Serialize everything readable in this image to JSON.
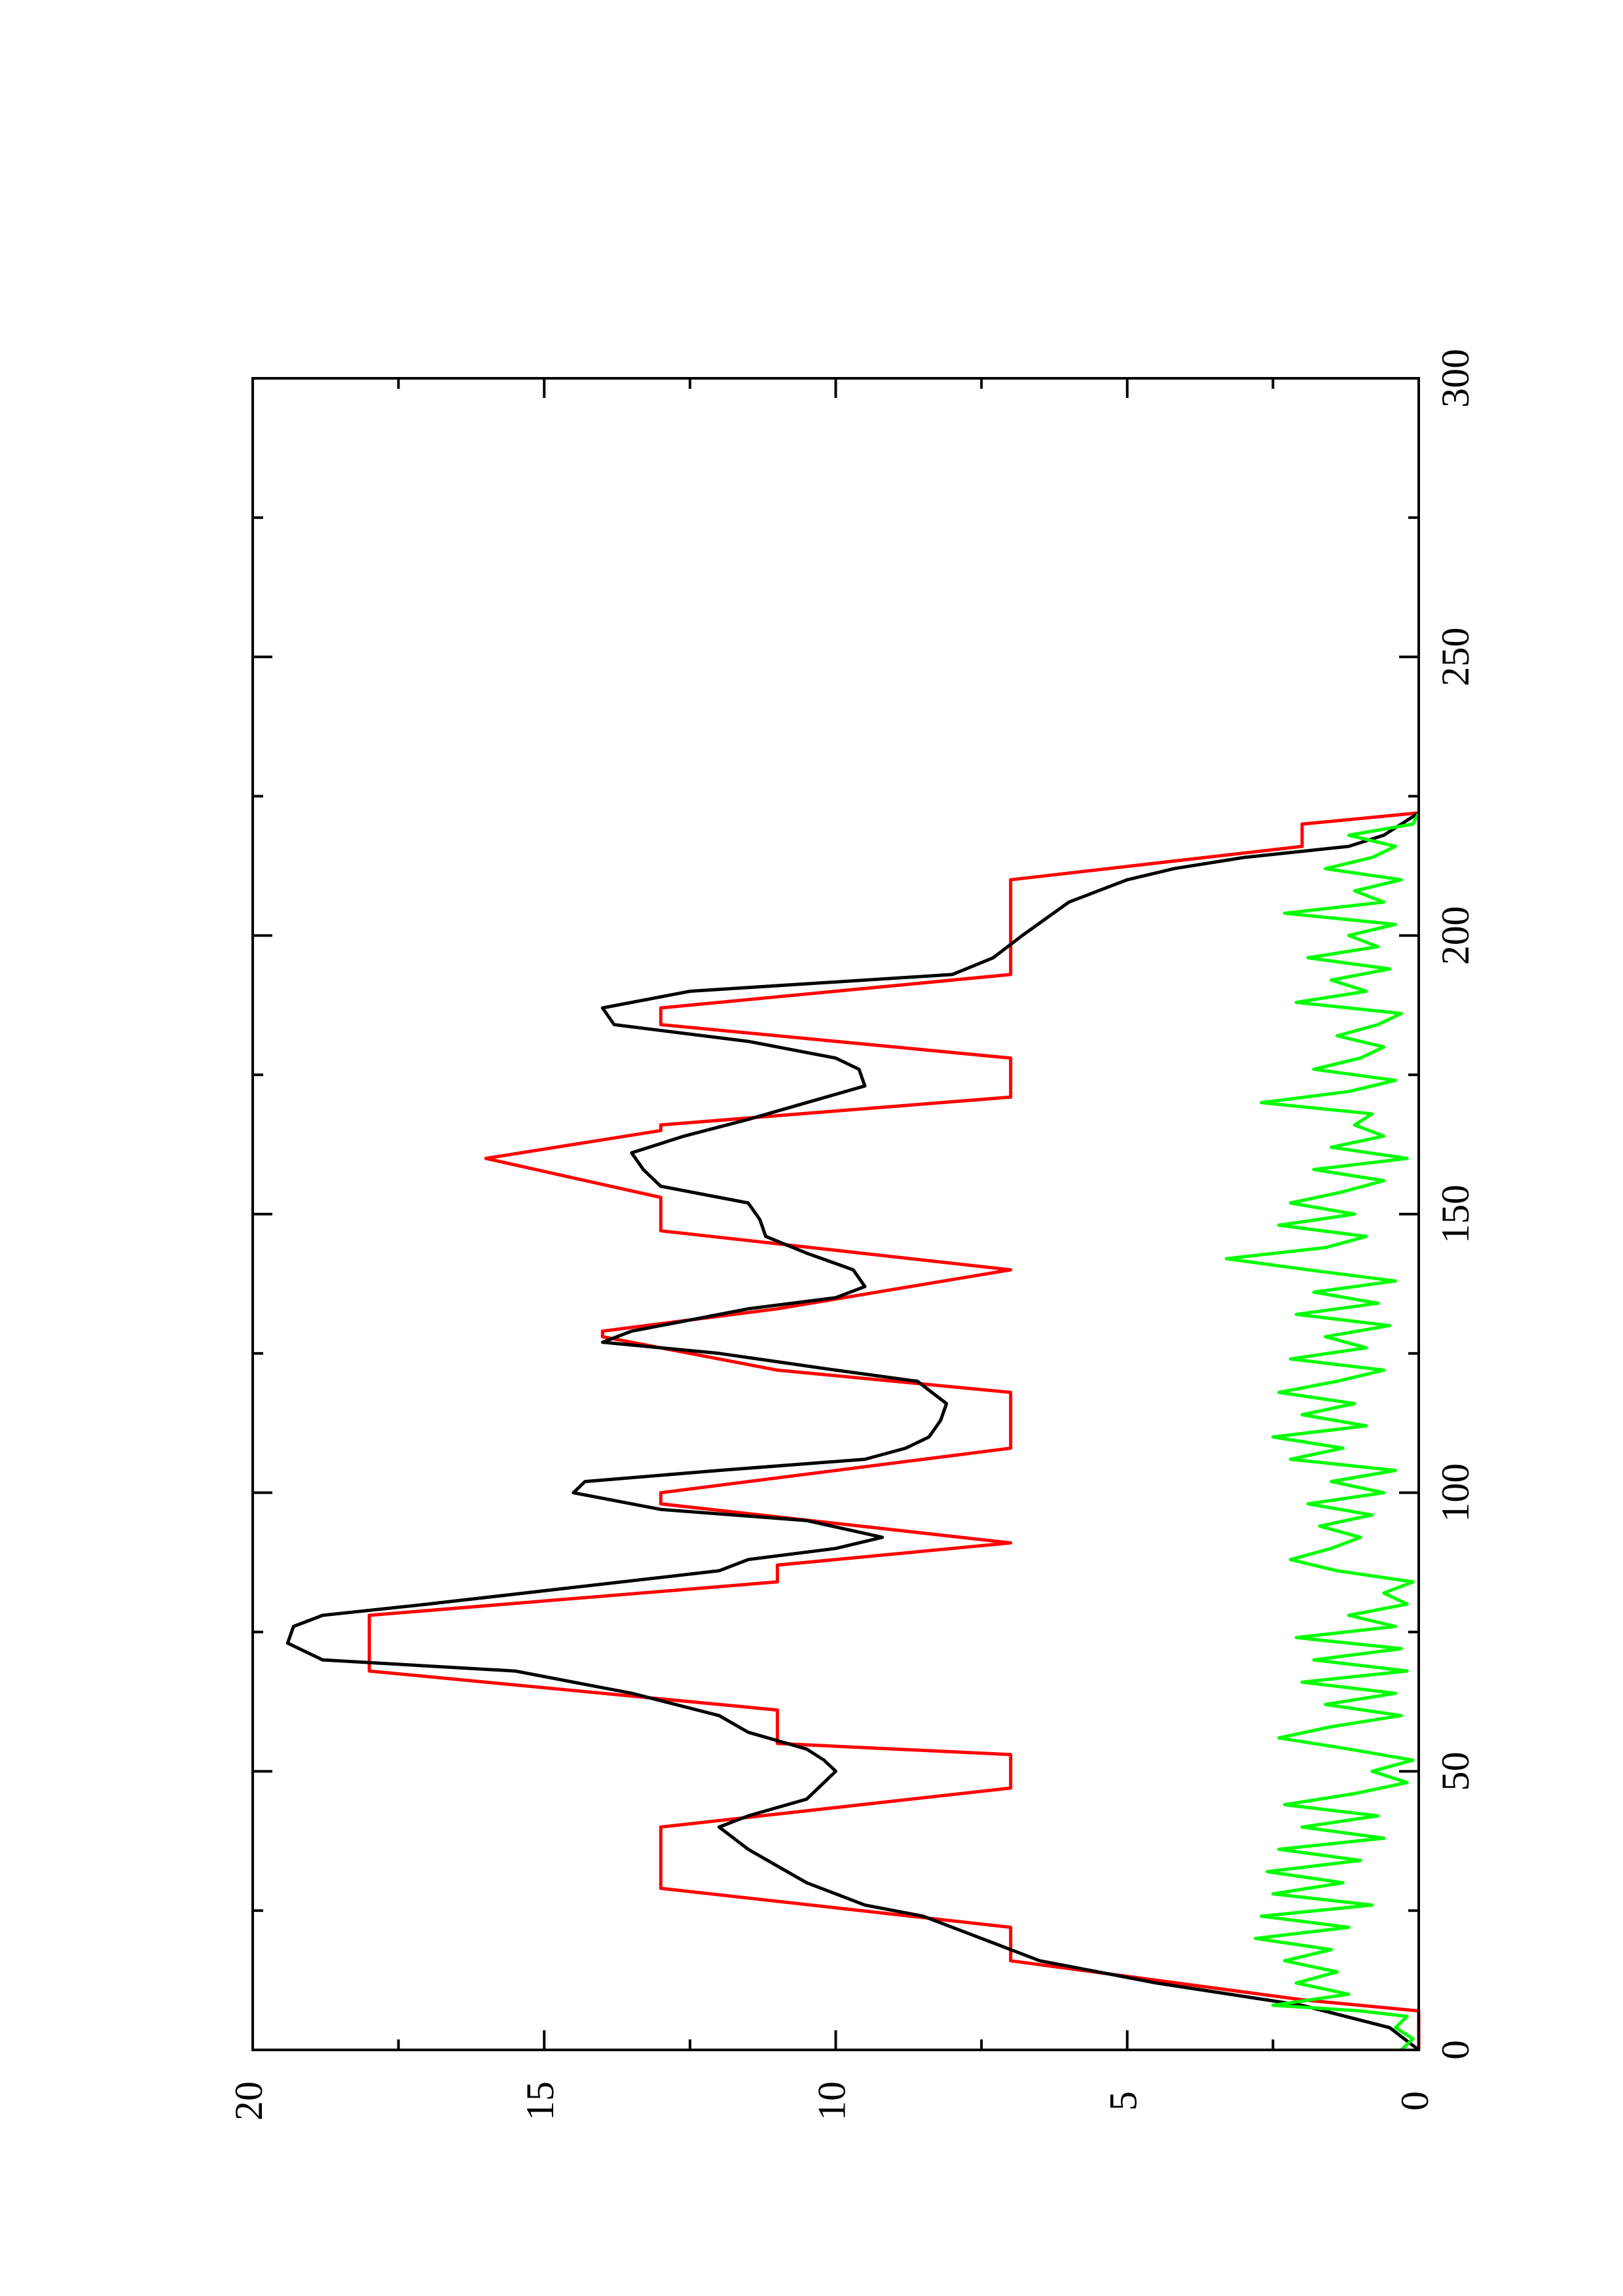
{
  "chart_data": {
    "type": "line",
    "title": "",
    "xlabel": "",
    "ylabel": "",
    "orientation": "rotated-90-counterclockwise",
    "xlim": [
      0,
      300
    ],
    "ylim": [
      0,
      20
    ],
    "x_ticks": [
      0,
      50,
      100,
      150,
      200,
      250,
      300
    ],
    "y_ticks": [
      0,
      5,
      10,
      15,
      20
    ],
    "grid": false,
    "legend": "none",
    "series": [
      {
        "color": "#ff0000",
        "x": [
          0,
          7,
          9,
          16,
          22,
          29,
          40,
          47,
          53,
          55,
          61,
          68,
          78,
          84,
          87,
          91,
          98,
          100,
          108,
          118,
          122,
          128,
          129,
          133,
          140,
          147,
          153,
          160,
          160,
          165,
          166,
          171,
          178,
          184,
          187,
          193,
          210,
          216,
          220,
          222
        ],
        "y": [
          0,
          0,
          2,
          7,
          7,
          13,
          13,
          7,
          7,
          11,
          11,
          18,
          18,
          11,
          11,
          7,
          13,
          13,
          7,
          7,
          11,
          14,
          14,
          11,
          7,
          13,
          13,
          16,
          16,
          13,
          13,
          7,
          7,
          13,
          13,
          7,
          7,
          2,
          2,
          0
        ]
      },
      {
        "color": "#000000",
        "x": [
          0,
          4,
          8,
          12,
          16,
          20,
          24,
          26,
          28,
          30,
          33,
          36,
          40,
          42,
          45,
          48,
          50,
          52,
          54,
          57,
          60,
          64,
          68,
          70,
          73,
          76,
          78,
          80,
          83,
          86,
          88,
          90,
          92,
          95,
          97,
          100,
          102,
          104,
          106,
          108,
          110,
          113,
          116,
          120,
          122,
          125,
          127,
          129,
          131,
          133,
          135,
          137,
          140,
          143,
          146,
          149,
          152,
          155,
          158,
          161,
          164,
          167,
          170,
          173,
          176,
          178,
          181,
          184,
          187,
          190,
          193,
          196,
          200,
          203,
          206,
          208,
          210,
          212,
          214,
          216,
          218,
          220,
          222
        ],
        "y": [
          0,
          0.5,
          2,
          4.5,
          6.5,
          7.5,
          8.5,
          9.5,
          10,
          10.5,
          11,
          11.5,
          12,
          11.5,
          10.5,
          10.2,
          10,
          10.2,
          10.5,
          11.5,
          12,
          13.5,
          15.5,
          18.8,
          19.4,
          19.3,
          18.8,
          17,
          14.5,
          12,
          11.5,
          10,
          9.2,
          10.5,
          13,
          14.5,
          14.3,
          12,
          9.5,
          8.8,
          8.4,
          8.2,
          8.1,
          8.6,
          10,
          12,
          14,
          13.5,
          12.5,
          11.5,
          10,
          9.5,
          9.7,
          10.5,
          11.2,
          11.3,
          11.5,
          13,
          13.3,
          13.5,
          12.6,
          11.5,
          10.5,
          9.5,
          9.6,
          10,
          11.5,
          13.8,
          14,
          12.5,
          8,
          7.3,
          6.8,
          6.4,
          6,
          5.5,
          5,
          4.2,
          3,
          1.2,
          0.6,
          0.3,
          0
        ]
      },
      {
        "color": "#00ff00",
        "x": [
          0,
          2,
          4,
          6,
          7,
          8,
          10,
          12,
          14,
          16,
          18,
          20,
          22,
          24,
          26,
          28,
          30,
          32,
          34,
          36,
          38,
          40,
          42,
          44,
          46,
          48,
          50,
          52,
          54,
          56,
          58,
          60,
          62,
          64,
          66,
          68,
          70,
          72,
          74,
          76,
          78,
          80,
          82,
          84,
          86,
          88,
          90,
          92,
          94,
          96,
          98,
          100,
          102,
          104,
          106,
          108,
          110,
          112,
          114,
          116,
          118,
          120,
          122,
          124,
          126,
          128,
          130,
          132,
          134,
          136,
          138,
          140,
          142,
          144,
          146,
          148,
          150,
          152,
          154,
          156,
          158,
          160,
          162,
          164,
          166,
          168,
          170,
          172,
          174,
          176,
          178,
          180,
          182,
          184,
          186,
          188,
          190,
          192,
          194,
          196,
          198,
          200,
          202,
          204,
          206,
          208,
          210,
          212,
          214,
          216,
          218,
          220,
          222
        ],
        "y": [
          0.3,
          0.1,
          0.4,
          0.2,
          1,
          2.5,
          1.2,
          2.1,
          1.4,
          2.3,
          1.5,
          2.8,
          1.2,
          2.7,
          0.8,
          2.5,
          1.3,
          2.6,
          1,
          2.4,
          0.6,
          2,
          0.7,
          2.3,
          1.1,
          0.2,
          0.8,
          0.1,
          1.2,
          2.4,
          1.5,
          0.3,
          1.6,
          0.4,
          2,
          0.2,
          1.8,
          0.3,
          2.1,
          0.4,
          1.2,
          0.2,
          0.6,
          0.1,
          1.4,
          2.2,
          1.5,
          1,
          1.7,
          0.8,
          1.9,
          0.6,
          1.5,
          0.4,
          2.2,
          1.3,
          2.5,
          0.9,
          2,
          1.1,
          2.4,
          1.4,
          0.6,
          2.2,
          0.9,
          1.6,
          0.5,
          2.1,
          0.7,
          1.8,
          0.4,
          1.9,
          3.3,
          1.6,
          0.9,
          2.4,
          1.1,
          2.2,
          1.3,
          0.6,
          1.8,
          0.2,
          1.5,
          0.6,
          1.1,
          0.8,
          2.7,
          1.2,
          0.4,
          1.8,
          1,
          0.6,
          1.4,
          0.7,
          0.3,
          2.1,
          0.9,
          1.5,
          0.5,
          1.9,
          0.7,
          1.2,
          0.4,
          2.3,
          0.6,
          1.1,
          0.3,
          1.6,
          0.8,
          0.4,
          1.2,
          0.1,
          0
        ]
      }
    ]
  }
}
